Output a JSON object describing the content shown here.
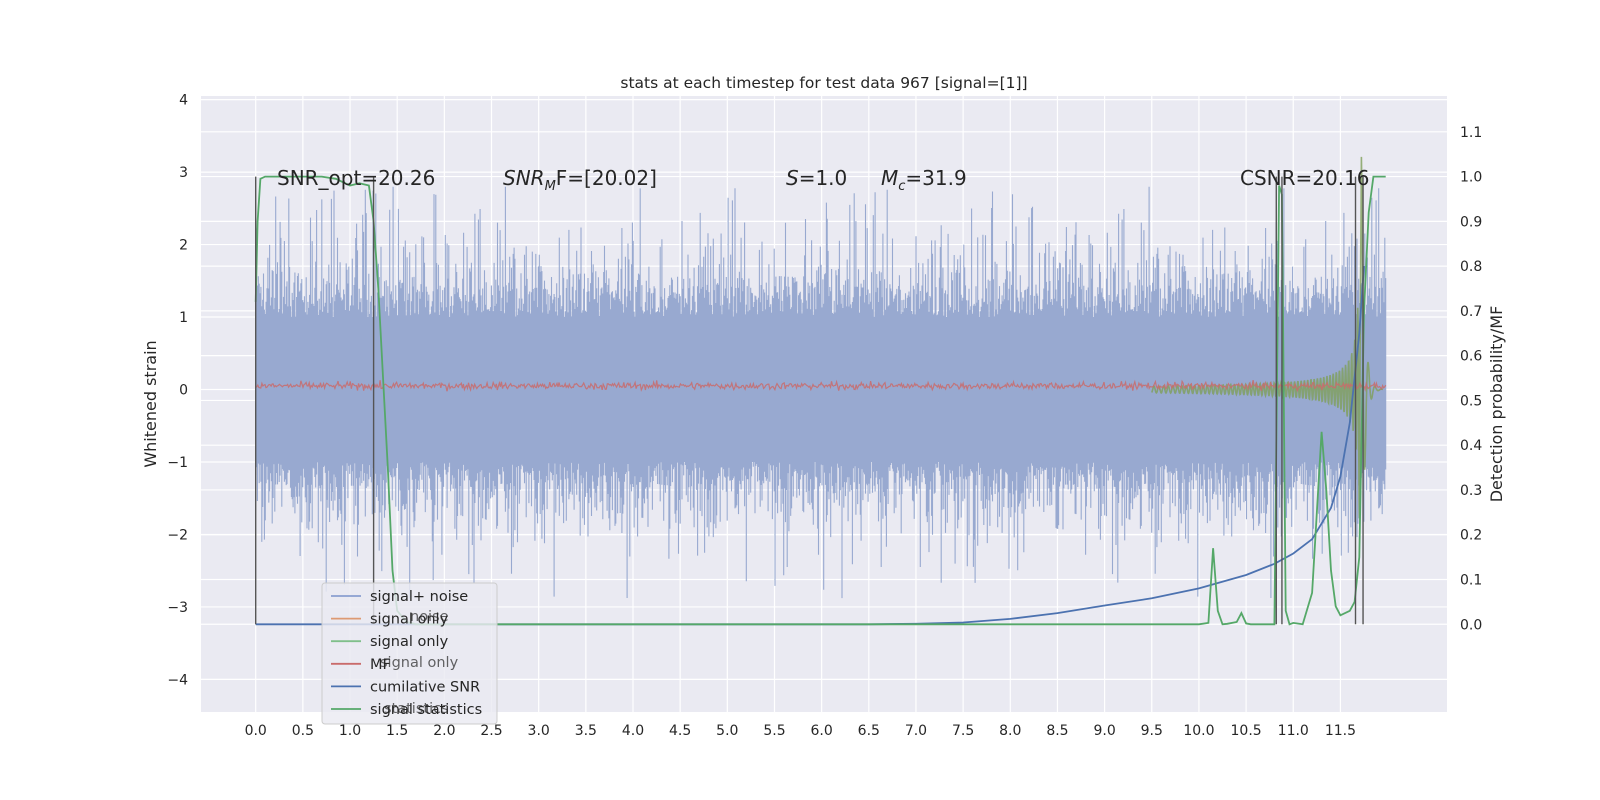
{
  "chart_data": {
    "type": "line",
    "title": "stats at each timestep for test data 967 [signal=[1]]",
    "ylabel_left": "Whitened strain",
    "ylabel_right": "Detection probability/MF",
    "xlim": [
      -0.58,
      12.63
    ],
    "ylim_left": [
      -4.45,
      4.05
    ],
    "ylim_right": [
      -0.196,
      1.18
    ],
    "x_ticks": [
      "0.0",
      "0.5",
      "1.0",
      "1.5",
      "2.0",
      "2.5",
      "3.0",
      "3.5",
      "4.0",
      "4.5",
      "5.0",
      "5.5",
      "6.0",
      "6.5",
      "7.0",
      "7.5",
      "8.0",
      "8.5",
      "9.0",
      "9.5",
      "10.0",
      "10.5",
      "11.0",
      "11.5"
    ],
    "y_ticks_left": [
      "4",
      "3",
      "2",
      "1",
      "0",
      "−1",
      "−2",
      "−3",
      "−4"
    ],
    "y_ticks_right": [
      "1.1",
      "1.0",
      "0.9",
      "0.8",
      "0.7",
      "0.6",
      "0.5",
      "0.4",
      "0.3",
      "0.2",
      "0.1",
      "0.0"
    ],
    "grid": true,
    "legend_position": "lower-left",
    "annotations": {
      "snr_opt": "SNR_opt=20.26",
      "snr_mf_main": "SNR",
      "snr_mf_sub": "M",
      "snr_mf_rest": "F=[20.02]",
      "s_main": "S",
      "s_rest": "=1.0",
      "mc_main": "M",
      "mc_sub": "c",
      "mc_rest": "=31.9",
      "csnr": "CSNR=20.16"
    },
    "legend": [
      {
        "label": "signal+ noise",
        "color": "#8a9fcf"
      },
      {
        "label": "signal only",
        "color": "#dd9a73"
      },
      {
        "label": "signal only",
        "color": "#7fbf8a"
      },
      {
        "label": "MF",
        "color": "#c96b6b"
      },
      {
        "label": "cumilative SNR",
        "color": "#4c72b0"
      },
      {
        "label": "signal statistics",
        "color": "#55a868"
      }
    ],
    "legend_ghost": [
      "noise",
      "signal only",
      "statistics"
    ],
    "series": [
      {
        "name": "signal+ noise",
        "axis": "left",
        "x_range": [
          0.0,
          11.98
        ],
        "envelope_typical": [
          -1.5,
          2.0
        ],
        "envelope_extreme": [
          -2.9,
          2.8
        ]
      },
      {
        "name": "MF",
        "axis": "left",
        "x_range": [
          0.0,
          11.98
        ],
        "level": 0.05
      },
      {
        "name": "signal only",
        "axis": "left",
        "x_range": [
          10.5,
          11.98
        ],
        "peak": 3.5
      },
      {
        "name": "cumilative SNR",
        "axis": "right",
        "x": [
          0,
          6.5,
          7.0,
          7.5,
          8.0,
          8.5,
          9.0,
          9.5,
          10.0,
          10.5,
          10.8,
          11.0,
          11.2,
          11.4,
          11.5,
          11.6,
          11.7,
          11.75
        ],
        "y": [
          0,
          0,
          0.001,
          0.004,
          0.012,
          0.025,
          0.042,
          0.058,
          0.08,
          0.11,
          0.135,
          0.158,
          0.19,
          0.26,
          0.33,
          0.45,
          0.65,
          0.8
        ]
      },
      {
        "name": "signal statistics",
        "axis": "right",
        "x": [
          0.0,
          0.02,
          0.05,
          0.1,
          0.2,
          0.3,
          0.5,
          0.7,
          0.85,
          0.95,
          1.0,
          1.1,
          1.2,
          1.25,
          1.3,
          1.4,
          1.45,
          1.5,
          1.6,
          1.7,
          2.0,
          10.0,
          10.1,
          10.15,
          10.2,
          10.25,
          10.3,
          10.4,
          10.45,
          10.5,
          10.55,
          10.6,
          10.8,
          10.85,
          10.88,
          10.92,
          10.96,
          11.0,
          11.1,
          11.2,
          11.3,
          11.35,
          11.4,
          11.45,
          11.5,
          11.6,
          11.65,
          11.7,
          11.75,
          11.8,
          11.85,
          11.9,
          11.95,
          11.98
        ],
        "y": [
          0.72,
          0.9,
          0.995,
          1.0,
          1.0,
          1.0,
          1.0,
          1.0,
          0.995,
          0.985,
          0.98,
          0.985,
          0.98,
          0.9,
          0.75,
          0.35,
          0.12,
          0.03,
          0.005,
          0.0,
          0.0,
          0.0,
          0.003,
          0.17,
          0.03,
          0.0,
          0.001,
          0.005,
          0.025,
          0.002,
          0.0,
          0.0,
          0.0,
          0.98,
          0.96,
          0.03,
          0.0,
          0.003,
          0.0,
          0.07,
          0.43,
          0.3,
          0.12,
          0.04,
          0.02,
          0.03,
          0.05,
          0.15,
          0.7,
          0.92,
          1.0,
          1.0,
          1.0,
          1.0
        ]
      }
    ],
    "vertical_markers_right_axis": [
      {
        "x": 0.0,
        "ymax": 1.0
      },
      {
        "x": 1.25,
        "ymax": 1.0
      },
      {
        "x": 10.82,
        "ymax": 1.0
      },
      {
        "x": 10.88,
        "ymax": 1.0
      },
      {
        "x": 11.66,
        "ymax": 1.0
      },
      {
        "x": 11.74,
        "ymax": 1.0
      }
    ]
  }
}
